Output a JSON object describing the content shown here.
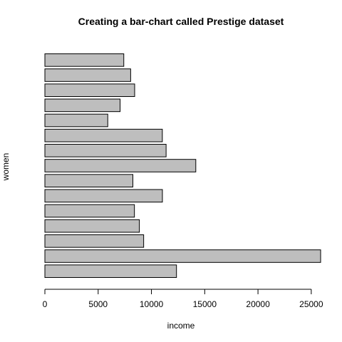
{
  "chart_data": {
    "type": "bar",
    "orientation": "horizontal",
    "title": "Creating a bar-chart called Prestige dataset",
    "xlabel": "income",
    "ylabel": "women",
    "xlim": [
      0,
      25879
    ],
    "x_ticks": [
      0,
      5000,
      10000,
      15000,
      20000,
      25000
    ],
    "x_tick_labels": [
      "0",
      "5000",
      "10000",
      "15000",
      "20000",
      "25000"
    ],
    "values": [
      12351,
      25879,
      9271,
      8865,
      8403,
      11030,
      8258,
      14163,
      11377,
      11023,
      5902,
      7059,
      8425,
      8049,
      7405
    ],
    "bar_fill": "#bebebe",
    "bar_stroke": "#000000"
  }
}
